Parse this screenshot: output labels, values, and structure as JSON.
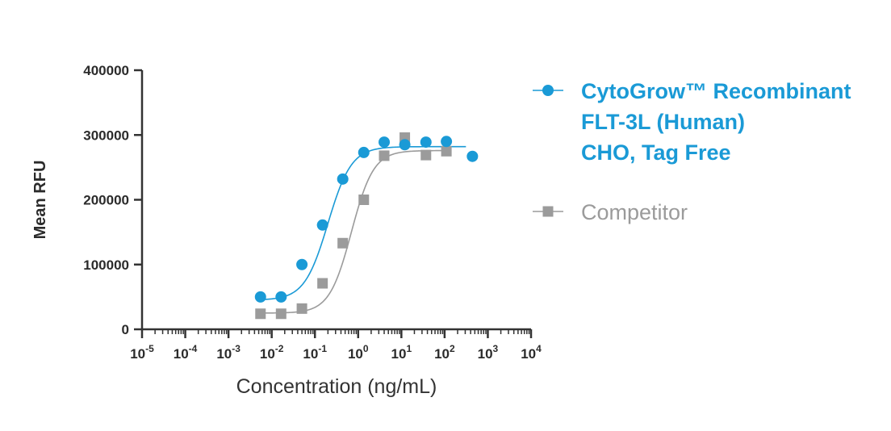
{
  "chart_data": {
    "type": "scatter",
    "title": "",
    "xlabel": "Concentration (ng/mL)",
    "ylabel": "Mean RFU",
    "xscale": "log10",
    "xlim_exponents": [
      -5,
      4
    ],
    "ylim": [
      0,
      400000
    ],
    "y_ticks": [
      0,
      100000,
      200000,
      300000,
      400000
    ],
    "y_tick_labels": [
      "0",
      "100000",
      "200000",
      "300000",
      "400000"
    ],
    "x_tick_exponents": [
      -5,
      -4,
      -3,
      -2,
      -1,
      0,
      1,
      2,
      3,
      4
    ],
    "x_tick_base": "10",
    "x_tick_superscripts": [
      "-5",
      "-4",
      "-3",
      "-2",
      "-1",
      "0",
      "1",
      "2",
      "3",
      "4"
    ],
    "legend_position": "right",
    "series": [
      {
        "name": "CytoGrow™ Recombinant FLT-3L (Human) CHO, Tag Free",
        "legend_lines": [
          "CytoGrow™ Recombinant",
          "FLT-3L (Human)",
          "CHO, Tag Free"
        ],
        "color": "#1a9ad6",
        "marker": "circle",
        "x": [
          0.0055,
          0.0165,
          0.05,
          0.15,
          0.44,
          1.35,
          4.0,
          12.0,
          37.0,
          110.0,
          440.0
        ],
        "y": [
          50000,
          50000,
          100000,
          161000,
          232000,
          273000,
          289000,
          285000,
          289000,
          290000,
          267000
        ],
        "fit": {
          "bottom": 45000,
          "top": 282000,
          "ec50": 0.2,
          "hill": 1.6
        }
      },
      {
        "name": "Competitor",
        "legend_lines": [
          "Competitor"
        ],
        "color": "#9b9b9b",
        "marker": "square",
        "x": [
          0.0055,
          0.0165,
          0.05,
          0.15,
          0.44,
          1.35,
          4.0,
          12.0,
          37.0,
          110.0
        ],
        "y": [
          24000,
          24000,
          32000,
          71000,
          133000,
          200000,
          268000,
          296000,
          269000,
          275000
        ],
        "fit": {
          "bottom": 25000,
          "top": 276000,
          "ec50": 0.7,
          "hill": 1.7
        }
      }
    ]
  }
}
